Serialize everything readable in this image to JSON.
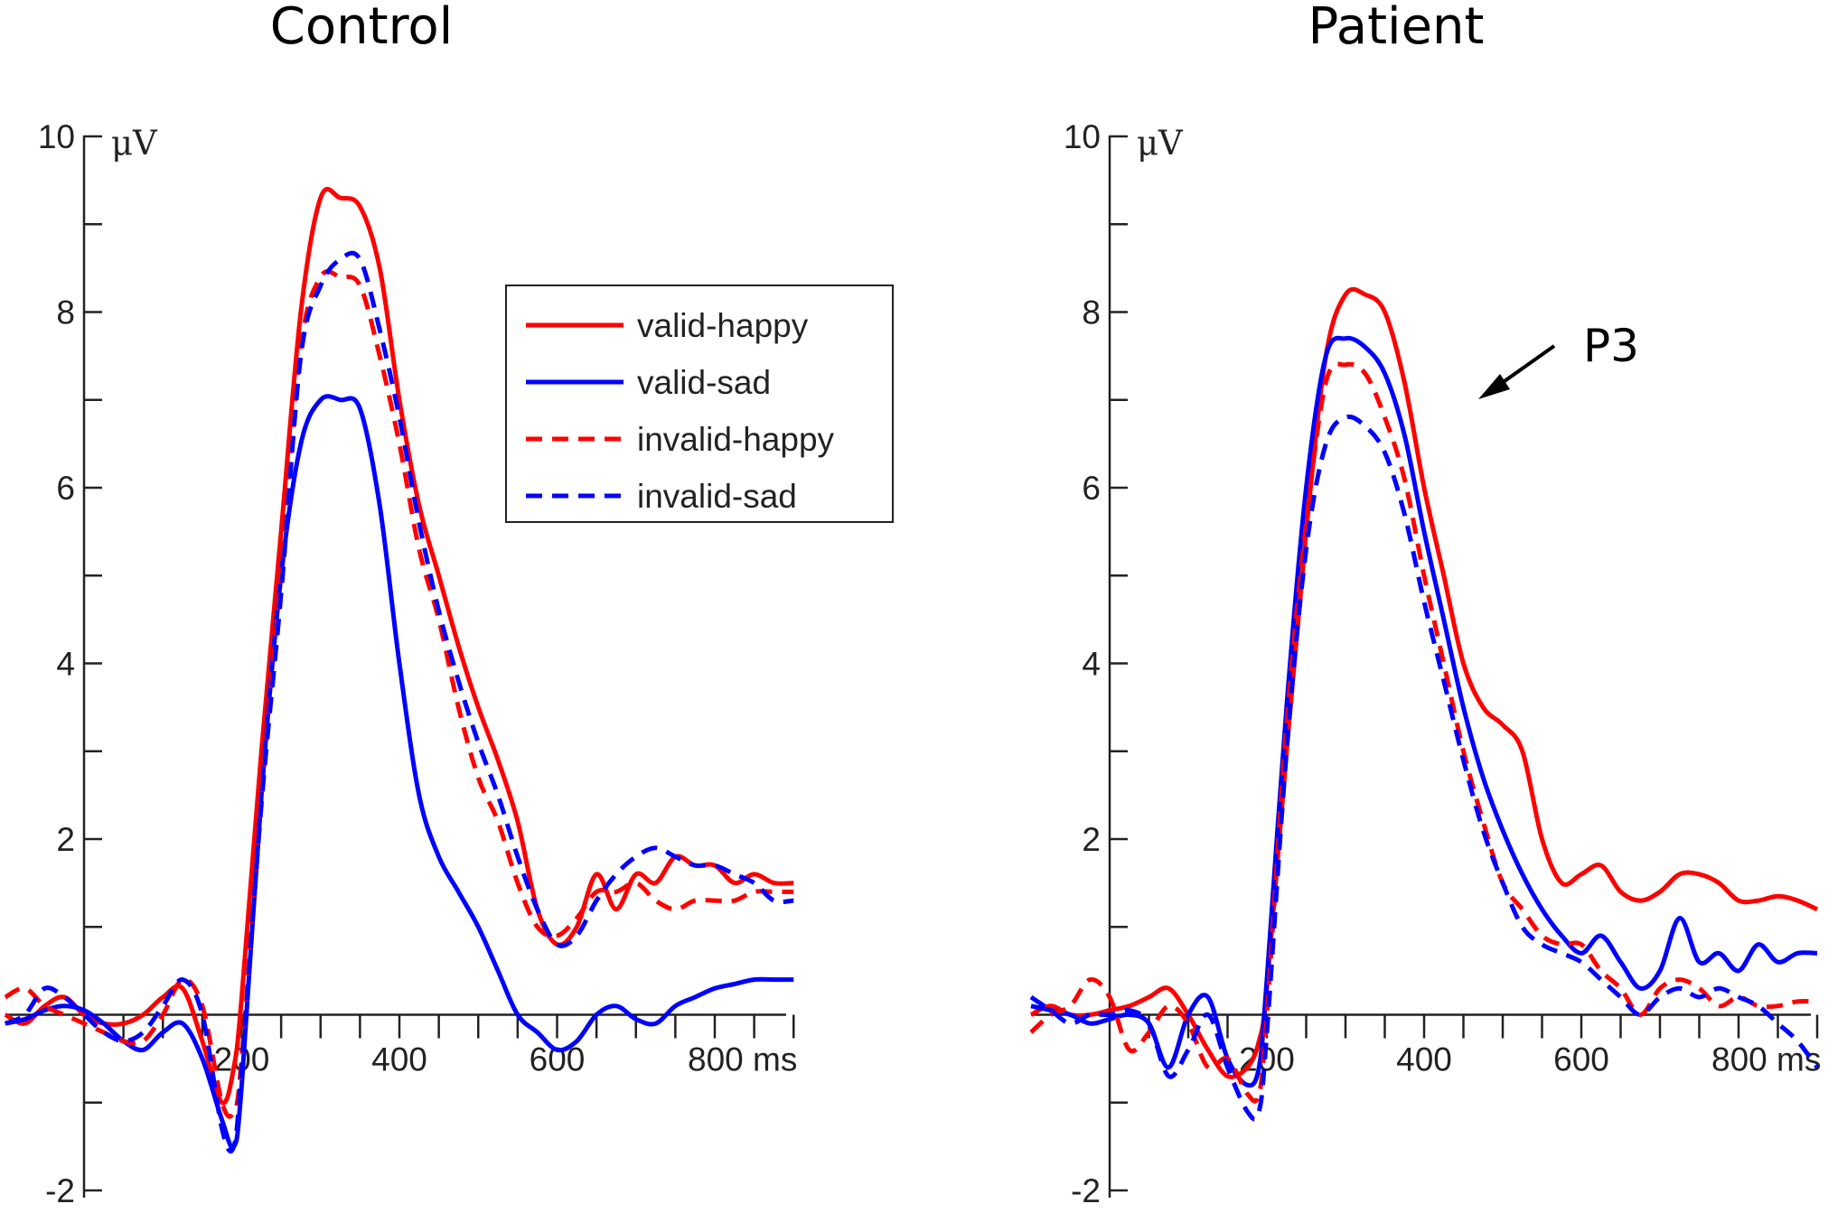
{
  "chart_data": [
    {
      "type": "line",
      "title": "Control",
      "xlabel": "ms",
      "ylabel": "μV",
      "xlim": [
        -100,
        900
      ],
      "ylim": [
        -2,
        10
      ],
      "x_ticks": [
        200,
        400,
        600,
        800
      ],
      "x_tick_labels": [
        "200",
        "400",
        "600",
        "800 ms"
      ],
      "y_ticks": [
        -2,
        2,
        4,
        6,
        8,
        10
      ],
      "y_tick_labels": [
        "-2",
        "2",
        "4",
        "6",
        "8",
        "10"
      ],
      "unit_label": "μV",
      "legend": {
        "placement": "top-right",
        "entries": [
          "valid-happy",
          "valid-sad",
          "invalid-happy",
          "invalid-sad"
        ]
      },
      "series": [
        {
          "name": "valid-happy",
          "color": "#ff0000",
          "dash": "solid",
          "x": [
            -100,
            -75,
            -50,
            -25,
            0,
            25,
            50,
            75,
            100,
            125,
            150,
            175,
            190,
            200,
            225,
            250,
            275,
            300,
            325,
            350,
            375,
            400,
            425,
            450,
            475,
            500,
            525,
            550,
            575,
            600,
            625,
            650,
            675,
            700,
            725,
            750,
            775,
            800,
            825,
            850,
            875,
            900
          ],
          "y": [
            0.0,
            -0.1,
            0.1,
            0.2,
            0.0,
            -0.1,
            -0.1,
            0.0,
            0.2,
            0.3,
            -0.3,
            -1.0,
            -0.6,
            0.2,
            3.0,
            5.5,
            8.0,
            9.3,
            9.3,
            9.2,
            8.5,
            7.0,
            5.8,
            5.0,
            4.2,
            3.5,
            2.9,
            2.2,
            1.2,
            0.8,
            1.0,
            1.6,
            1.2,
            1.6,
            1.5,
            1.8,
            1.7,
            1.7,
            1.5,
            1.6,
            1.5,
            1.5
          ]
        },
        {
          "name": "valid-sad",
          "color": "#0000ff",
          "dash": "solid",
          "x": [
            -100,
            -75,
            -50,
            -25,
            0,
            25,
            50,
            75,
            100,
            125,
            150,
            175,
            190,
            200,
            225,
            250,
            275,
            300,
            325,
            350,
            375,
            400,
            425,
            450,
            475,
            500,
            525,
            550,
            575,
            600,
            625,
            650,
            675,
            700,
            725,
            750,
            775,
            800,
            825,
            850,
            875,
            900
          ],
          "y": [
            -0.1,
            -0.05,
            0.05,
            0.1,
            0.05,
            -0.1,
            -0.3,
            -0.4,
            -0.2,
            -0.1,
            -0.5,
            -1.2,
            -1.5,
            -0.8,
            2.5,
            5.0,
            6.5,
            7.0,
            7.0,
            6.9,
            5.8,
            4.0,
            2.5,
            1.8,
            1.4,
            1.0,
            0.5,
            0.0,
            -0.2,
            -0.4,
            -0.3,
            0.0,
            0.1,
            -0.05,
            -0.1,
            0.1,
            0.2,
            0.3,
            0.35,
            0.4,
            0.4,
            0.4
          ]
        },
        {
          "name": "invalid-happy",
          "color": "#ff0000",
          "dash": "dashed",
          "x": [
            -100,
            -75,
            -50,
            -25,
            0,
            25,
            50,
            75,
            100,
            125,
            150,
            175,
            190,
            200,
            225,
            250,
            275,
            300,
            325,
            350,
            375,
            400,
            425,
            450,
            475,
            500,
            525,
            550,
            575,
            600,
            625,
            650,
            675,
            700,
            725,
            750,
            775,
            800,
            825,
            850,
            875,
            900
          ],
          "y": [
            0.2,
            0.3,
            0.1,
            0.0,
            -0.1,
            -0.2,
            -0.3,
            -0.3,
            0.0,
            0.4,
            0.1,
            -1.0,
            -1.1,
            -0.5,
            2.5,
            5.0,
            7.6,
            8.4,
            8.4,
            8.3,
            7.5,
            6.5,
            5.3,
            4.5,
            3.5,
            2.7,
            2.2,
            1.5,
            1.0,
            0.9,
            1.1,
            1.4,
            1.4,
            1.5,
            1.3,
            1.2,
            1.3,
            1.3,
            1.3,
            1.4,
            1.4,
            1.4
          ]
        },
        {
          "name": "invalid-sad",
          "color": "#0000ff",
          "dash": "dashed",
          "x": [
            -100,
            -75,
            -50,
            -25,
            0,
            25,
            50,
            75,
            100,
            125,
            150,
            175,
            190,
            200,
            225,
            250,
            275,
            300,
            325,
            350,
            375,
            400,
            425,
            450,
            475,
            500,
            525,
            550,
            575,
            600,
            625,
            650,
            675,
            700,
            725,
            750,
            775,
            800,
            825,
            850,
            875,
            900
          ],
          "y": [
            -0.1,
            0.0,
            0.3,
            0.2,
            0.0,
            -0.2,
            -0.3,
            -0.2,
            0.1,
            0.4,
            0.0,
            -1.3,
            -1.5,
            -0.6,
            2.4,
            4.8,
            7.5,
            8.3,
            8.6,
            8.6,
            7.8,
            6.8,
            5.6,
            4.6,
            3.8,
            3.1,
            2.5,
            1.8,
            1.2,
            0.8,
            0.9,
            1.3,
            1.6,
            1.8,
            1.9,
            1.8,
            1.7,
            1.7,
            1.6,
            1.5,
            1.3,
            1.3
          ]
        }
      ]
    },
    {
      "type": "line",
      "title": "Patient",
      "xlabel": "ms",
      "ylabel": "μV",
      "xlim": [
        -100,
        900
      ],
      "ylim": [
        -2,
        10
      ],
      "x_ticks": [
        200,
        400,
        600,
        800
      ],
      "x_tick_labels": [
        "200",
        "400",
        "600",
        "800 ms"
      ],
      "y_ticks": [
        -2,
        2,
        4,
        6,
        8,
        10
      ],
      "y_tick_labels": [
        "-2",
        "2",
        "4",
        "6",
        "8",
        "10"
      ],
      "unit_label": "μV",
      "annotations": [
        {
          "text": "P3",
          "points_to": "P3 peak",
          "x": 420,
          "y": 7.0
        }
      ],
      "series": [
        {
          "name": "valid-happy",
          "color": "#ff0000",
          "dash": "solid",
          "x": [
            -100,
            -75,
            -50,
            -25,
            0,
            25,
            50,
            75,
            100,
            125,
            150,
            175,
            190,
            200,
            225,
            250,
            275,
            300,
            325,
            350,
            375,
            400,
            425,
            450,
            475,
            500,
            525,
            550,
            575,
            600,
            625,
            650,
            675,
            700,
            725,
            750,
            775,
            800,
            825,
            850,
            875,
            900
          ],
          "y": [
            0.0,
            0.1,
            0.0,
            0.0,
            0.05,
            0.1,
            0.2,
            0.3,
            0.0,
            -0.4,
            -0.7,
            -0.6,
            -0.3,
            0.3,
            3.0,
            5.5,
            7.5,
            8.2,
            8.2,
            8.0,
            7.2,
            6.0,
            5.0,
            4.0,
            3.5,
            3.3,
            3.0,
            2.0,
            1.5,
            1.6,
            1.7,
            1.4,
            1.3,
            1.4,
            1.6,
            1.6,
            1.5,
            1.3,
            1.3,
            1.35,
            1.3,
            1.2
          ]
        },
        {
          "name": "valid-sad",
          "color": "#0000ff",
          "dash": "solid",
          "x": [
            -100,
            -75,
            -50,
            -25,
            0,
            25,
            50,
            75,
            100,
            125,
            150,
            175,
            190,
            200,
            225,
            250,
            275,
            300,
            325,
            350,
            375,
            400,
            425,
            450,
            475,
            500,
            525,
            550,
            575,
            600,
            625,
            650,
            675,
            700,
            725,
            750,
            775,
            800,
            825,
            850,
            875,
            900
          ],
          "y": [
            0.1,
            0.05,
            0.0,
            -0.1,
            -0.05,
            0.0,
            -0.1,
            -0.6,
            0.0,
            0.2,
            -0.5,
            -0.8,
            -0.6,
            0.4,
            3.5,
            6.0,
            7.5,
            7.7,
            7.6,
            7.3,
            6.6,
            5.5,
            4.5,
            3.5,
            2.7,
            2.1,
            1.6,
            1.2,
            0.9,
            0.7,
            0.9,
            0.6,
            0.3,
            0.5,
            1.1,
            0.6,
            0.7,
            0.5,
            0.8,
            0.6,
            0.7,
            0.7
          ]
        },
        {
          "name": "invalid-happy",
          "color": "#ff0000",
          "dash": "dashed",
          "x": [
            -100,
            -75,
            -50,
            -25,
            0,
            25,
            50,
            75,
            100,
            125,
            150,
            175,
            190,
            200,
            225,
            250,
            275,
            300,
            325,
            350,
            375,
            400,
            425,
            450,
            475,
            500,
            525,
            550,
            575,
            600,
            625,
            650,
            675,
            700,
            725,
            750,
            775,
            800,
            825,
            850,
            875,
            900
          ],
          "y": [
            -0.2,
            0.0,
            0.1,
            0.4,
            0.2,
            -0.4,
            -0.2,
            0.1,
            -0.1,
            -0.6,
            -0.5,
            -0.9,
            -0.9,
            0.0,
            3.3,
            5.6,
            7.2,
            7.4,
            7.3,
            6.8,
            6.1,
            5.0,
            4.0,
            3.0,
            2.2,
            1.5,
            1.2,
            0.9,
            0.8,
            0.8,
            0.5,
            0.3,
            0.0,
            0.3,
            0.4,
            0.3,
            0.1,
            0.2,
            0.1,
            0.1,
            0.15,
            0.15
          ]
        },
        {
          "name": "invalid-sad",
          "color": "#0000ff",
          "dash": "dashed",
          "x": [
            -100,
            -75,
            -50,
            -25,
            0,
            25,
            50,
            75,
            100,
            125,
            150,
            175,
            190,
            200,
            225,
            250,
            275,
            300,
            325,
            350,
            375,
            400,
            425,
            450,
            475,
            500,
            525,
            550,
            575,
            600,
            625,
            650,
            675,
            700,
            725,
            750,
            775,
            800,
            825,
            850,
            875,
            900
          ],
          "y": [
            0.2,
            0.05,
            -0.1,
            0.0,
            0.0,
            0.05,
            -0.1,
            -0.7,
            -0.4,
            0.0,
            -0.6,
            -1.1,
            -1.1,
            -0.2,
            3.0,
            5.3,
            6.5,
            6.8,
            6.7,
            6.4,
            5.7,
            4.7,
            3.8,
            2.9,
            2.1,
            1.5,
            1.0,
            0.8,
            0.7,
            0.6,
            0.4,
            0.2,
            0.0,
            0.2,
            0.3,
            0.2,
            0.3,
            0.2,
            0.1,
            -0.1,
            -0.3,
            -0.6
          ]
        }
      ]
    }
  ]
}
